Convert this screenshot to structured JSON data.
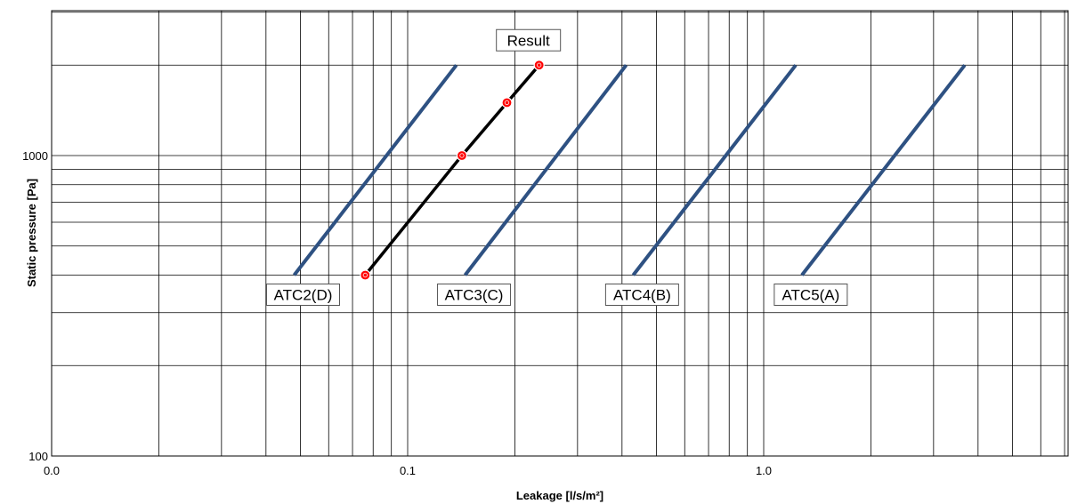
{
  "chart_data": {
    "type": "line",
    "xscale": "log",
    "yscale": "log",
    "xlabel": "Leakage [l/s/m²]",
    "ylabel": "Static pressure [Pa]",
    "xlim": [
      0.01,
      15
    ],
    "ylim": [
      100,
      3000
    ],
    "x_tick_labels": [
      {
        "value": 0.01,
        "label": "0.0"
      },
      {
        "value": 0.1,
        "label": "0.1"
      },
      {
        "value": 1,
        "label": "1.0"
      }
    ],
    "y_tick_labels": [
      {
        "value": 100,
        "label": "100"
      },
      {
        "value": 1000,
        "label": "1000"
      }
    ],
    "grid": true,
    "series": [
      {
        "name": "ATC2(D)",
        "color": "#2e5182",
        "x": [
          0.048,
          0.137
        ],
        "y": [
          400,
          2000
        ]
      },
      {
        "name": "ATC3(C)",
        "color": "#2e5182",
        "x": [
          0.145,
          0.411
        ],
        "y": [
          400,
          2000
        ]
      },
      {
        "name": "ATC4(B)",
        "color": "#2e5182",
        "x": [
          0.43,
          1.23
        ],
        "y": [
          400,
          2000
        ]
      },
      {
        "name": "ATC5(A)",
        "color": "#2e5182",
        "x": [
          1.28,
          3.67
        ],
        "y": [
          400,
          2000
        ]
      },
      {
        "name": "Result",
        "color": "#000000",
        "marker_color": "#ff0000",
        "markers": true,
        "x": [
          0.076,
          0.142,
          0.19,
          0.234
        ],
        "y": [
          400,
          1000,
          1500,
          2000
        ]
      }
    ]
  }
}
